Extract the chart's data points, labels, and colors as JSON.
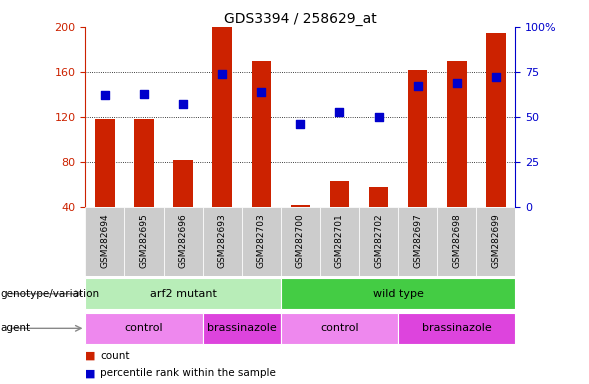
{
  "title": "GDS3394 / 258629_at",
  "samples": [
    "GSM282694",
    "GSM282695",
    "GSM282696",
    "GSM282693",
    "GSM282703",
    "GSM282700",
    "GSM282701",
    "GSM282702",
    "GSM282697",
    "GSM282698",
    "GSM282699"
  ],
  "count_values": [
    118,
    118,
    82,
    200,
    170,
    42,
    63,
    58,
    162,
    170,
    195
  ],
  "percentile_values": [
    62,
    63,
    57,
    74,
    64,
    46,
    53,
    50,
    67,
    69,
    72
  ],
  "ylim_left": [
    40,
    200
  ],
  "ylim_right": [
    0,
    100
  ],
  "yticks_left": [
    40,
    80,
    120,
    160,
    200
  ],
  "yticks_right": [
    0,
    25,
    50,
    75,
    100
  ],
  "yticklabels_right": [
    "0",
    "25",
    "50",
    "75",
    "100%"
  ],
  "bar_color": "#cc2200",
  "dot_color": "#0000cc",
  "genotype_groups": [
    {
      "label": "arf2 mutant",
      "start": 0,
      "end": 5,
      "color": "#b8edb8"
    },
    {
      "label": "wild type",
      "start": 5,
      "end": 11,
      "color": "#44cc44"
    }
  ],
  "agent_groups": [
    {
      "label": "control",
      "start": 0,
      "end": 3,
      "color": "#ee88ee"
    },
    {
      "label": "brassinazole",
      "start": 3,
      "end": 5,
      "color": "#dd44dd"
    },
    {
      "label": "control",
      "start": 5,
      "end": 8,
      "color": "#ee88ee"
    },
    {
      "label": "brassinazole",
      "start": 8,
      "end": 11,
      "color": "#dd44dd"
    }
  ],
  "tick_label_color_left": "#cc2200",
  "tick_label_color_right": "#0000cc",
  "legend_items": [
    {
      "label": "count",
      "color": "#cc2200"
    },
    {
      "label": "percentile rank within the sample",
      "color": "#0000cc"
    }
  ]
}
